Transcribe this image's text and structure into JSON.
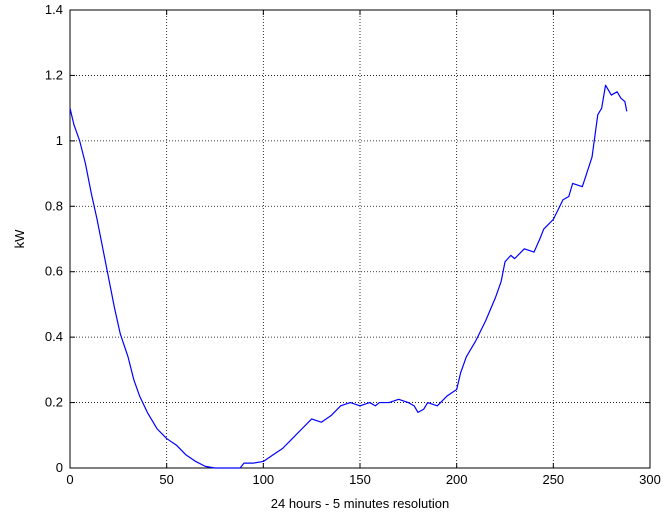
{
  "chart_data": {
    "type": "line",
    "title": "",
    "xlabel": "24 hours - 5 minutes resolution",
    "ylabel": "kW",
    "xlim": [
      0,
      300
    ],
    "ylim": [
      0,
      1.4
    ],
    "grid": true,
    "xticks": [
      0,
      50,
      100,
      150,
      200,
      250,
      300
    ],
    "yticks": [
      0,
      0.2,
      0.4,
      0.6,
      0.8,
      1,
      1.2,
      1.4
    ],
    "xtick_labels": [
      "0",
      "50",
      "100",
      "150",
      "200",
      "250",
      "300"
    ],
    "ytick_labels": [
      "0",
      "0.2",
      "0.4",
      "0.6",
      "0.8",
      "1",
      "1.2",
      "1.4"
    ],
    "series": [
      {
        "color": "#0000ff",
        "x": [
          0,
          2,
          5,
          8,
          11,
          14,
          17,
          20,
          23,
          26,
          30,
          33,
          36,
          40,
          45,
          50,
          55,
          60,
          65,
          70,
          75,
          80,
          85,
          88,
          90,
          95,
          100,
          105,
          110,
          115,
          120,
          125,
          130,
          135,
          140,
          145,
          150,
          155,
          158,
          160,
          165,
          170,
          175,
          178,
          180,
          183,
          185,
          190,
          195,
          200,
          202,
          205,
          210,
          215,
          220,
          223,
          225,
          228,
          230,
          235,
          240,
          243,
          245,
          250,
          255,
          258,
          260,
          265,
          270,
          273,
          275,
          277,
          280,
          283,
          285,
          287,
          288
        ],
        "y": [
          1.1,
          1.05,
          1.0,
          0.93,
          0.84,
          0.76,
          0.67,
          0.58,
          0.49,
          0.41,
          0.34,
          0.27,
          0.22,
          0.17,
          0.12,
          0.09,
          0.07,
          0.04,
          0.02,
          0.005,
          0.0,
          0.0,
          0.0,
          0.0,
          0.015,
          0.015,
          0.02,
          0.04,
          0.06,
          0.09,
          0.12,
          0.15,
          0.14,
          0.16,
          0.19,
          0.2,
          0.19,
          0.2,
          0.19,
          0.2,
          0.2,
          0.21,
          0.2,
          0.19,
          0.17,
          0.18,
          0.2,
          0.19,
          0.22,
          0.24,
          0.29,
          0.34,
          0.39,
          0.45,
          0.52,
          0.57,
          0.63,
          0.65,
          0.64,
          0.67,
          0.66,
          0.7,
          0.73,
          0.76,
          0.82,
          0.83,
          0.87,
          0.86,
          0.95,
          1.08,
          1.1,
          1.17,
          1.14,
          1.15,
          1.13,
          1.12,
          1.09
        ]
      }
    ]
  }
}
